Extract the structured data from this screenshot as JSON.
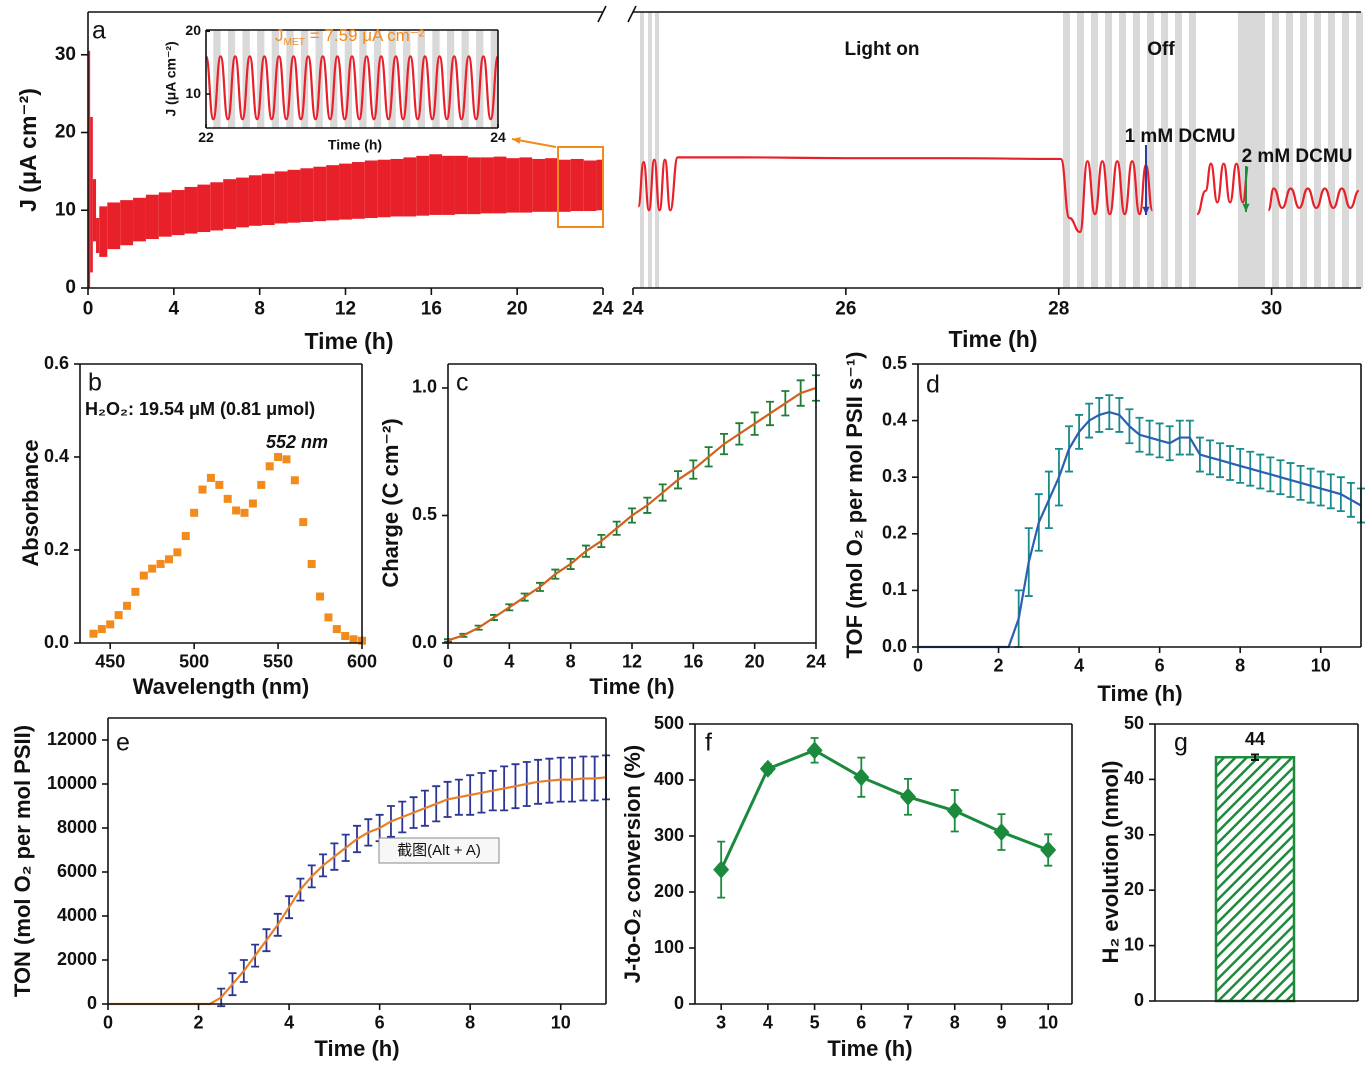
{
  "chart_data": [
    {
      "type": "range",
      "label": "a",
      "xlabel": "Time (h)",
      "ylabel": "J (μA cm⁻²)",
      "x": [
        0,
        0.05,
        0.15,
        0.3,
        0.45,
        0.6,
        1.2,
        1.8,
        2.4,
        3,
        3.6,
        4.2,
        4.8,
        5.4,
        6,
        6.6,
        7.2,
        7.8,
        8.4,
        9,
        9.6,
        10.2,
        10.8,
        11.4,
        12,
        12.6,
        13.2,
        13.8,
        14.4,
        15,
        15.6,
        16.2,
        16.8,
        17.4,
        18,
        18.6,
        19.2,
        19.8,
        20.4,
        21,
        21.6,
        22.2,
        22.8,
        23.4,
        24
      ],
      "series": [
        {
          "color": "#e8202a",
          "values": [
            0,
            30.5,
            22,
            14,
            9,
            10.5,
            11,
            11.3,
            11.6,
            12,
            12.3,
            12.6,
            13,
            13.3,
            13.6,
            14,
            14.2,
            14.5,
            14.7,
            15,
            15.2,
            15.4,
            15.6,
            15.8,
            16,
            16.2,
            16.4,
            16.5,
            16.6,
            16.8,
            17,
            17.2,
            17,
            17,
            16.8,
            16.8,
            16.9,
            16.7,
            16.8,
            16.6,
            16.7,
            16.5,
            16.6,
            16.4,
            16.5
          ]
        },
        {
          "color": "#e8202a",
          "values": [
            0,
            0,
            2,
            6,
            4.5,
            4,
            5,
            5.5,
            6,
            6.3,
            6.6,
            6.8,
            7,
            7.2,
            7.4,
            7.6,
            7.8,
            8,
            8.1,
            8.3,
            8.4,
            8.5,
            8.6,
            8.7,
            8.8,
            8.9,
            9,
            9.1,
            9.2,
            9.2,
            9.3,
            9.4,
            9.4,
            9.5,
            9.5,
            9.6,
            9.6,
            9.7,
            9.7,
            9.8,
            9.8,
            9.8,
            9.9,
            9.9,
            10
          ]
        }
      ],
      "xlim": [
        0,
        24
      ],
      "xticks": [
        0,
        4,
        8,
        12,
        16,
        20,
        24
      ],
      "ylim": [
        0,
        35.5
      ],
      "yticks": [
        0,
        10,
        20,
        30
      ]
    },
    {
      "type": "line",
      "smooth": true,
      "xlabel": "Time (h)",
      "ylabel": "J (μA cm⁻²)",
      "annotations": [
        {
          "text": "J",
          "sub": "MET",
          "rest": " = 7.59 μA cm⁻²",
          "color": "#f28a1c"
        }
      ],
      "x": [
        22,
        22.05,
        22.1,
        22.15,
        22.2,
        22.25,
        22.3,
        22.35,
        22.4,
        22.45,
        22.5,
        22.55,
        22.6,
        22.65,
        22.7,
        22.75,
        22.8,
        22.85,
        22.9,
        22.95,
        23,
        23.05,
        23.1,
        23.15,
        23.2,
        23.25,
        23.3,
        23.35,
        23.4,
        23.45,
        23.5,
        23.55,
        23.6,
        23.65,
        23.7,
        23.75,
        23.8,
        23.85,
        23.9,
        23.95,
        24
      ],
      "series": [
        {
          "color": "#e8202a",
          "values": [
            16,
            6,
            16,
            6,
            16,
            6,
            16,
            6,
            16,
            6,
            16,
            6,
            16,
            6,
            16,
            6,
            16,
            6,
            16,
            6,
            16,
            6,
            16,
            6,
            16,
            6,
            16,
            6,
            16,
            6,
            16,
            6,
            16,
            6,
            16,
            6,
            16,
            6,
            16,
            6,
            16
          ]
        }
      ],
      "xlim": [
        22,
        24
      ],
      "xticks": [
        22,
        24
      ],
      "ylim": [
        4.6,
        20.2
      ],
      "yticks": [
        10,
        20
      ]
    },
    {
      "type": "line",
      "smooth": true,
      "xlabel": "Time (h)",
      "annotations": [
        {
          "text": "Light on",
          "color": "#111111"
        },
        {
          "text": "Off",
          "color": "#111111"
        },
        {
          "text": "1 mM DCMU",
          "color": "#2b3fa0"
        },
        {
          "text": "2 mM DCMU",
          "color": "#1e8a3c"
        }
      ],
      "x": [
        24.05,
        24.1,
        24.15,
        24.2,
        24.25,
        24.3,
        24.35,
        24.42,
        25,
        26,
        27,
        28.02,
        28.1,
        28.2,
        28.27,
        28.34,
        28.41,
        28.48,
        28.55,
        28.62,
        28.69,
        28.76,
        28.82,
        28.88,
        29,
        29.3,
        29.38,
        29.43,
        29.49,
        29.55,
        29.61,
        29.67,
        29.73,
        29.78,
        29.85,
        29.97,
        30.02,
        30.1,
        30.18,
        30.26,
        30.34,
        30.42,
        30.5,
        30.58,
        30.66,
        30.74,
        30.82
      ],
      "series": [
        {
          "color": "#e8202a",
          "values": [
            10.5,
            16.2,
            10,
            16.5,
            10,
            16.5,
            10,
            16.8,
            16.8,
            16.7,
            16.7,
            16.6,
            9,
            7.2,
            16.3,
            9.5,
            16.3,
            9.5,
            16.3,
            9.5,
            16.3,
            9.5,
            15.8,
            10,
            null,
            9.5,
            12.5,
            16,
            11,
            16,
            11,
            16,
            11,
            15.5,
            null,
            10,
            12.8,
            10.3,
            12.8,
            10.3,
            12.8,
            10.3,
            12.8,
            10.3,
            12.8,
            10.3,
            12.5
          ]
        }
      ],
      "xlim": [
        24,
        30.84
      ],
      "xticks": [
        24,
        26,
        28,
        30
      ],
      "ylim": [
        0,
        35.5
      ]
    },
    {
      "type": "scatter",
      "label": "b",
      "xlabel": "Wavelength (nm)",
      "ylabel": "Absorbance",
      "annotations": [
        {
          "text": "H₂O₂: 19.54 μM (0.81 μmol)",
          "color": "#111111"
        },
        {
          "text": "552 nm",
          "color": "#111111"
        }
      ],
      "x": [
        440,
        445,
        450,
        455,
        460,
        465,
        470,
        475,
        480,
        485,
        490,
        495,
        500,
        505,
        510,
        515,
        520,
        525,
        530,
        535,
        540,
        545,
        550,
        555,
        560,
        565,
        570,
        575,
        580,
        585,
        590,
        595,
        600
      ],
      "series": [
        {
          "color": "#f28a1c",
          "marker": "square",
          "values": [
            0.02,
            0.03,
            0.04,
            0.06,
            0.08,
            0.11,
            0.145,
            0.16,
            0.17,
            0.18,
            0.195,
            0.23,
            0.28,
            0.33,
            0.355,
            0.34,
            0.31,
            0.285,
            0.28,
            0.3,
            0.34,
            0.38,
            0.4,
            0.395,
            0.35,
            0.26,
            0.17,
            0.1,
            0.055,
            0.03,
            0.015,
            0.008,
            0.005
          ]
        }
      ],
      "xlim": [
        432,
        600
      ],
      "xticks": [
        450,
        500,
        550,
        600
      ],
      "ylim": [
        0,
        0.6
      ],
      "yticks": [
        {
          "value": 0,
          "label": "0.0"
        },
        0.2,
        0.4,
        0.6
      ]
    },
    {
      "type": "line",
      "label": "c",
      "xlabel": "Time (h)",
      "ylabel": "Charge (C cm⁻²)",
      "x": [
        0,
        1,
        2,
        3,
        4,
        5,
        6,
        7,
        8,
        9,
        10,
        11,
        12,
        13,
        14,
        15,
        16,
        17,
        18,
        19,
        20,
        21,
        22,
        23,
        24
      ],
      "series": [
        {
          "color": "#d2601e",
          "error_color": "#1e7d32",
          "values": [
            0.01,
            0.03,
            0.06,
            0.1,
            0.14,
            0.18,
            0.22,
            0.27,
            0.31,
            0.36,
            0.4,
            0.45,
            0.5,
            0.54,
            0.59,
            0.64,
            0.68,
            0.73,
            0.78,
            0.82,
            0.86,
            0.9,
            0.94,
            0.98,
            1.0
          ],
          "errors": [
            0.005,
            0.006,
            0.008,
            0.01,
            0.012,
            0.014,
            0.016,
            0.018,
            0.02,
            0.022,
            0.024,
            0.026,
            0.028,
            0.03,
            0.032,
            0.034,
            0.036,
            0.038,
            0.04,
            0.042,
            0.044,
            0.046,
            0.048,
            0.05,
            0.05
          ]
        }
      ],
      "xlim": [
        0,
        24
      ],
      "xticks": [
        0,
        4,
        8,
        12,
        16,
        20,
        24
      ],
      "ylim": [
        0,
        1.094
      ],
      "yticks": [
        {
          "value": 0,
          "label": "0.0"
        },
        0.5,
        {
          "value": 1,
          "label": "1.0"
        }
      ]
    },
    {
      "type": "line",
      "label": "d",
      "xlabel": "Time (h)",
      "ylabel": "TOF (mol O₂ per mol PSII s⁻¹)",
      "x": [
        0,
        0.25,
        0.5,
        0.75,
        1,
        1.25,
        1.5,
        1.75,
        2,
        2.25,
        2.5,
        2.75,
        3,
        3.25,
        3.5,
        3.75,
        4,
        4.25,
        4.5,
        4.75,
        5,
        5.25,
        5.5,
        5.75,
        6,
        6.25,
        6.5,
        6.75,
        7,
        7.25,
        7.5,
        7.75,
        8,
        8.25,
        8.5,
        8.75,
        9,
        9.25,
        9.5,
        9.75,
        10,
        10.25,
        10.5,
        10.75,
        11
      ],
      "series": [
        {
          "color": "#2b5fb0",
          "error_color": "#1a8a8a",
          "values": [
            0,
            0,
            0,
            0,
            0,
            0,
            0,
            0,
            0,
            0,
            0.05,
            0.15,
            0.22,
            0.26,
            0.3,
            0.35,
            0.38,
            0.4,
            0.41,
            0.415,
            0.41,
            0.39,
            0.375,
            0.37,
            0.365,
            0.36,
            0.37,
            0.37,
            0.34,
            0.335,
            0.33,
            0.325,
            0.32,
            0.315,
            0.31,
            0.305,
            0.3,
            0.295,
            0.29,
            0.285,
            0.28,
            0.275,
            0.27,
            0.26,
            0.25
          ],
          "errors": [
            0,
            0,
            0,
            0,
            0,
            0,
            0,
            0,
            0,
            0,
            0.05,
            0.06,
            0.05,
            0.05,
            0.05,
            0.04,
            0.03,
            0.03,
            0.03,
            0.03,
            0.03,
            0.03,
            0.03,
            0.03,
            0.03,
            0.03,
            0.03,
            0.03,
            0.03,
            0.03,
            0.03,
            0.03,
            0.03,
            0.03,
            0.03,
            0.03,
            0.03,
            0.03,
            0.03,
            0.03,
            0.03,
            0.03,
            0.03,
            0.03,
            0.03
          ]
        }
      ],
      "xlim": [
        0,
        11
      ],
      "xticks": [
        0,
        2,
        4,
        6,
        8,
        10
      ],
      "ylim": [
        0,
        0.5
      ],
      "yticks": [
        {
          "value": 0,
          "label": "0.0"
        },
        0.1,
        0.2,
        0.3,
        0.4,
        0.5
      ]
    },
    {
      "type": "line",
      "label": "e",
      "xlabel": "Time (h)",
      "ylabel": "TON (mol O₂ per mol PSII)",
      "tooltip": "截图(Alt + A)",
      "x": [
        0,
        0.25,
        0.5,
        0.75,
        1,
        1.25,
        1.5,
        1.75,
        2,
        2.25,
        2.5,
        2.75,
        3,
        3.25,
        3.5,
        3.75,
        4,
        4.25,
        4.5,
        4.75,
        5,
        5.25,
        5.5,
        5.75,
        6,
        6.25,
        6.5,
        6.75,
        7,
        7.25,
        7.5,
        7.75,
        8,
        8.25,
        8.5,
        8.75,
        9,
        9.25,
        9.5,
        9.75,
        10,
        10.25,
        10.5,
        10.75,
        11
      ],
      "series": [
        {
          "color": "#e8802a",
          "error_color": "#2b3594",
          "values": [
            0,
            0,
            0,
            0,
            0,
            0,
            0,
            0,
            0,
            0,
            300,
            900,
            1500,
            2200,
            2900,
            3600,
            4400,
            5200,
            5800,
            6300,
            6700,
            7100,
            7500,
            7800,
            8000,
            8300,
            8500,
            8700,
            8900,
            9100,
            9300,
            9400,
            9500,
            9600,
            9700,
            9800,
            9900,
            10000,
            10100,
            10150,
            10200,
            10200,
            10250,
            10250,
            10300
          ],
          "errors": [
            0,
            0,
            0,
            0,
            0,
            0,
            0,
            0,
            0,
            0,
            400,
            500,
            500,
            500,
            500,
            500,
            500,
            500,
            500,
            500,
            600,
            600,
            600,
            600,
            600,
            700,
            700,
            700,
            800,
            800,
            800,
            800,
            900,
            900,
            900,
            1000,
            1000,
            1000,
            1000,
            1000,
            1000,
            1000,
            1000,
            1000,
            1000
          ]
        }
      ],
      "xlim": [
        0,
        11
      ],
      "xticks": [
        0,
        2,
        4,
        6,
        8,
        10
      ],
      "ylim": [
        0,
        13000
      ],
      "yticks": [
        0,
        2000,
        4000,
        6000,
        8000,
        10000,
        12000
      ]
    },
    {
      "type": "line",
      "label": "f",
      "xlabel": "Time (h)",
      "ylabel": "J-to-O₂ conversion (%)",
      "x": [
        3,
        4,
        5,
        6,
        7,
        8,
        9,
        10
      ],
      "series": [
        {
          "color": "#1b8a3c",
          "marker": "diamond",
          "values": [
            240,
            420,
            453,
            405,
            370,
            345,
            307,
            275
          ],
          "errors": [
            50,
            8,
            22,
            35,
            32,
            37,
            32,
            28
          ]
        }
      ],
      "xlim": [
        2.44,
        10.51
      ],
      "xticks": [
        3,
        4,
        5,
        6,
        7,
        8,
        9,
        10
      ],
      "ylim": [
        0,
        500
      ],
      "yticks": [
        0,
        100,
        200,
        300,
        400,
        500
      ]
    },
    {
      "type": "bar",
      "label": "g",
      "ylabel": "H₂ evolution (nmol)",
      "categories": [
        null
      ],
      "series": [
        {
          "color": "#1e8a3c",
          "values": [
            44
          ],
          "errors": [
            0.5
          ]
        }
      ],
      "ylim": [
        0,
        50
      ],
      "yticks": [
        0,
        10,
        20,
        30,
        40,
        50
      ]
    }
  ]
}
